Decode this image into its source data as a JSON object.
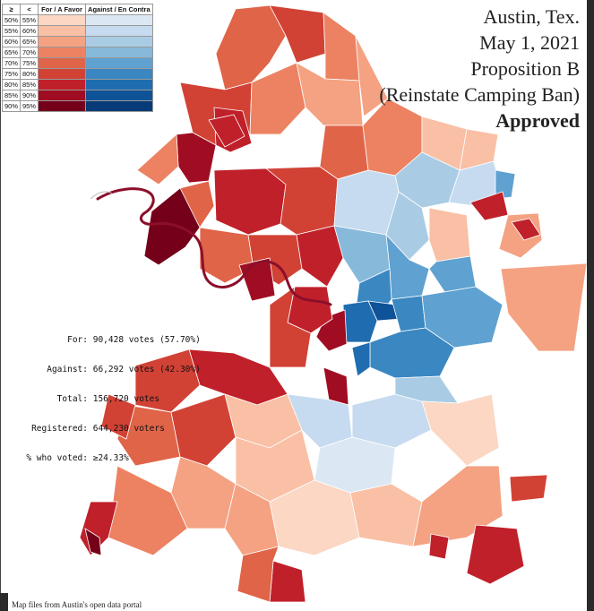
{
  "title": {
    "city": "Austin, Tex.",
    "date": "May 1, 2021",
    "proposition": "Proposition B",
    "subtitle": "(Reinstate Camping Ban)",
    "result": "Approved"
  },
  "legend": {
    "headers": [
      "≥",
      "<",
      "For / A Favor",
      "Against / En Contra"
    ],
    "rows": [
      {
        "min": "50%",
        "max": "55%",
        "for_color": "#fbd7c4",
        "against_color": "#dbe8f4"
      },
      {
        "min": "55%",
        "max": "60%",
        "for_color": "#f9c0a5",
        "against_color": "#c6dbef"
      },
      {
        "min": "60%",
        "max": "65%",
        "for_color": "#f4a282",
        "against_color": "#a9cce4"
      },
      {
        "min": "65%",
        "max": "70%",
        "for_color": "#ec8262",
        "against_color": "#86b9da"
      },
      {
        "min": "70%",
        "max": "75%",
        "for_color": "#e06448",
        "against_color": "#5fa1d0"
      },
      {
        "min": "75%",
        "max": "80%",
        "for_color": "#d14235",
        "against_color": "#3a87c2"
      },
      {
        "min": "80%",
        "max": "85%",
        "for_color": "#c0202a",
        "against_color": "#1f6db0"
      },
      {
        "min": "85%",
        "max": "90%",
        "for_color": "#a00d22",
        "against_color": "#0e5297"
      },
      {
        "min": "90%",
        "max": "95%",
        "for_color": "#74001a",
        "against_color": "#083a78"
      }
    ]
  },
  "stats": [
    {
      "label": "For:",
      "value": "90,428 votes (57.70%)"
    },
    {
      "label": "Against:",
      "value": "66,292 votes (42.30%)"
    },
    {
      "label": "Total:",
      "value": "156,720 votes"
    },
    {
      "label": "Registered:",
      "value": "644,230 voters"
    },
    {
      "label": "% who voted:",
      "value": "≥24.33%"
    }
  ],
  "source": "Map files from Austin's open data portal",
  "colors": {
    "for_bins": [
      "#fbd7c4",
      "#f9c0a5",
      "#f4a282",
      "#ec8262",
      "#e06448",
      "#d14235",
      "#c0202a",
      "#a00d22",
      "#74001a"
    ],
    "against_bins": [
      "#dbe8f4",
      "#c6dbef",
      "#a9cce4",
      "#86b9da",
      "#5fa1d0",
      "#3a87c2",
      "#1f6db0",
      "#0e5297",
      "#083a78"
    ],
    "river": "#8c0f2a",
    "border": "#ffffff"
  }
}
